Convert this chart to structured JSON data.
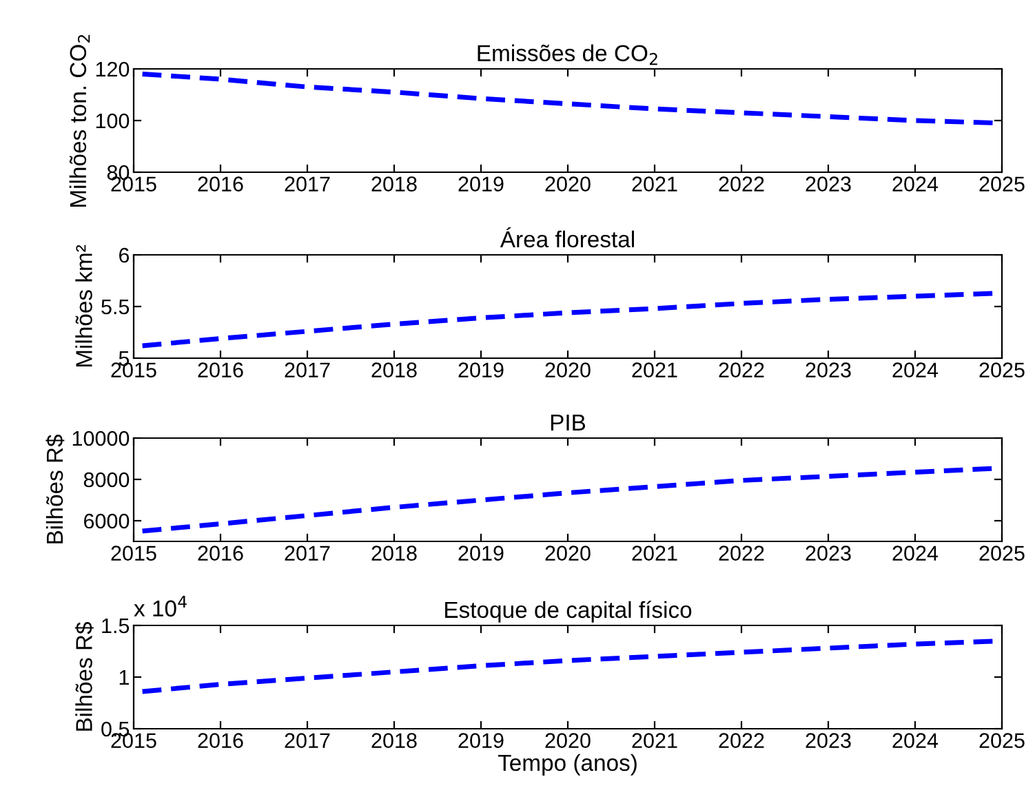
{
  "chart_data": [
    {
      "type": "line",
      "title": "Emissões de CO$_{2}$",
      "ylabel": "Milhões ton. CO$_{2}$",
      "x": [
        2015.1,
        2016,
        2017,
        2018,
        2019,
        2020,
        2021,
        2022,
        2023,
        2024,
        2025
      ],
      "series": [
        {
          "color": "#0000ff",
          "values": [
            118,
            116,
            113,
            111,
            108.5,
            106.5,
            104.5,
            103,
            101.5,
            100,
            99
          ]
        }
      ],
      "xlim": [
        2015,
        2025
      ],
      "xticks": [
        2015,
        2016,
        2017,
        2018,
        2019,
        2020,
        2021,
        2022,
        2023,
        2024,
        2025
      ],
      "ylim": [
        80,
        120
      ],
      "yticks": [
        80,
        100,
        120
      ],
      "line_style": "dashed",
      "legend": false
    },
    {
      "type": "line",
      "title": "Área florestal",
      "ylabel": "Milhões km²",
      "x": [
        2015.1,
        2016,
        2017,
        2018,
        2019,
        2020,
        2021,
        2022,
        2023,
        2024,
        2025
      ],
      "series": [
        {
          "color": "#0000ff",
          "values": [
            5.12,
            5.19,
            5.26,
            5.33,
            5.39,
            5.44,
            5.48,
            5.53,
            5.57,
            5.6,
            5.63
          ]
        }
      ],
      "xlim": [
        2015,
        2025
      ],
      "xticks": [
        2015,
        2016,
        2017,
        2018,
        2019,
        2020,
        2021,
        2022,
        2023,
        2024,
        2025
      ],
      "ylim": [
        5,
        6
      ],
      "yticks": [
        5,
        5.5,
        6
      ],
      "line_style": "dashed",
      "legend": false
    },
    {
      "type": "line",
      "title": "PIB",
      "ylabel": "Bilhões R$",
      "x": [
        2015.1,
        2016,
        2017,
        2018,
        2019,
        2020,
        2021,
        2022,
        2023,
        2024,
        2025
      ],
      "series": [
        {
          "color": "#0000ff",
          "values": [
            5500,
            5850,
            6250,
            6650,
            7000,
            7350,
            7650,
            7950,
            8150,
            8350,
            8550
          ]
        }
      ],
      "xlim": [
        2015,
        2025
      ],
      "xticks": [
        2015,
        2016,
        2017,
        2018,
        2019,
        2020,
        2021,
        2022,
        2023,
        2024,
        2025
      ],
      "ylim": [
        5000,
        10000
      ],
      "yticks": [
        6000,
        8000,
        10000
      ],
      "line_style": "dashed",
      "legend": false
    },
    {
      "type": "line",
      "title": "Estoque de capital físico",
      "ylabel": "Bilhões R$",
      "xlabel": "Tempo (anos)",
      "annotations": [
        "x 10$^{4}$"
      ],
      "x": [
        2015.1,
        2016,
        2017,
        2018,
        2019,
        2020,
        2021,
        2022,
        2023,
        2024,
        2025
      ],
      "series": [
        {
          "color": "#0000ff",
          "values": [
            0.86,
            0.93,
            0.99,
            1.05,
            1.11,
            1.16,
            1.2,
            1.24,
            1.28,
            1.32,
            1.35
          ]
        }
      ],
      "xlim": [
        2015,
        2025
      ],
      "xticks": [
        2015,
        2016,
        2017,
        2018,
        2019,
        2020,
        2021,
        2022,
        2023,
        2024,
        2025
      ],
      "ylim": [
        0.5,
        1.5
      ],
      "yticks": [
        0.5,
        1,
        1.5
      ],
      "line_style": "dashed",
      "legend": false
    }
  ]
}
